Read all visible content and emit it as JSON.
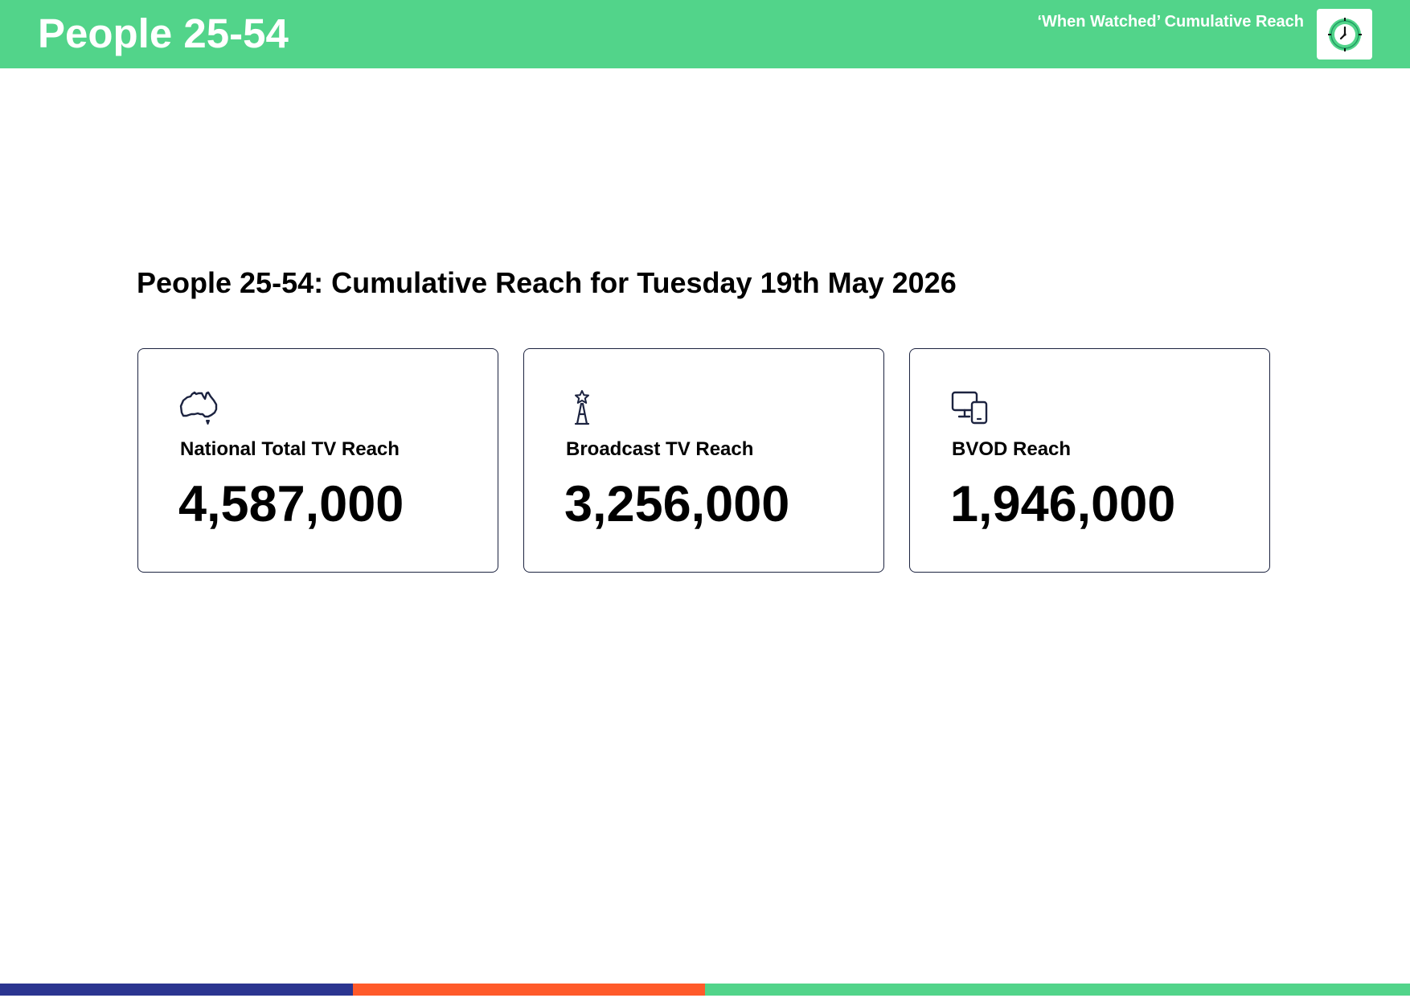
{
  "header": {
    "title": "People 25-54",
    "subtitle": "‘When Watched’ Cumulative Reach",
    "badge_icon": "clock-icon",
    "background_color": "#52d48a"
  },
  "main": {
    "heading": "People 25-54: Cumulative Reach for Tuesday 19th May 2026"
  },
  "cards": [
    {
      "icon": "australia-map-icon",
      "label": "National Total TV Reach",
      "value": "4,587,000"
    },
    {
      "icon": "broadcast-tower-icon",
      "label": "Broadcast TV Reach",
      "value": "3,256,000"
    },
    {
      "icon": "devices-icon",
      "label": "BVOD Reach",
      "value": "1,946,000"
    }
  ],
  "footer": {
    "colors": [
      "#2b3590",
      "#ff5a2a",
      "#52d48a"
    ]
  }
}
